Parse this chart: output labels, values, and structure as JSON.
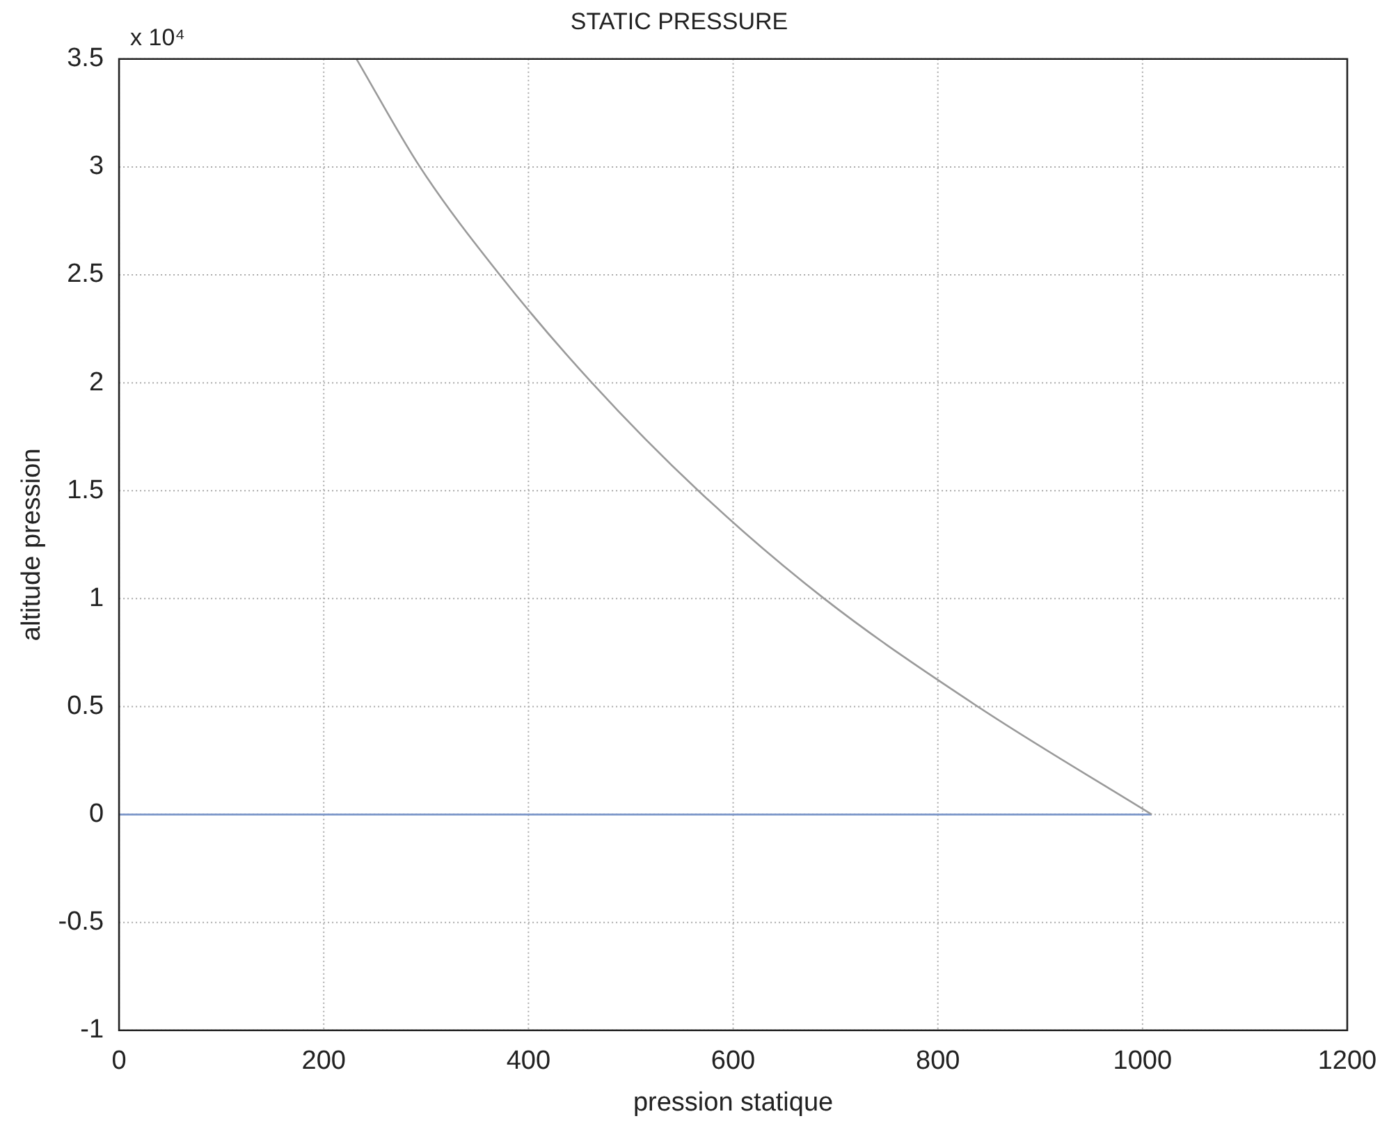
{
  "chart_data": {
    "type": "line",
    "title": "STATIC PRESSURE",
    "xlabel": "pression statique",
    "ylabel": "altitude pression",
    "annotations": [
      "x 10⁴"
    ],
    "series": [
      {
        "color": "#9a9a9a",
        "x": [
          232,
          294,
          372,
          462,
          566,
          689,
          839,
          1009
        ],
        "values": [
          3.5,
          3,
          2.5,
          2,
          1.5,
          1,
          0.5,
          0
        ]
      },
      {
        "color": "#7a95c8",
        "x": [
          0,
          1009
        ],
        "values": [
          0,
          0
        ]
      }
    ],
    "xlim": [
      0,
      1200
    ],
    "xticks": [
      0,
      200,
      400,
      600,
      800,
      1000,
      1200
    ],
    "ylim": [
      -1,
      3.5
    ],
    "yticks": [
      -1,
      -0.5,
      0,
      0.5,
      1,
      1.5,
      2,
      2.5,
      3,
      3.5
    ],
    "grid": true,
    "line_style": "solid",
    "marker": "none"
  }
}
